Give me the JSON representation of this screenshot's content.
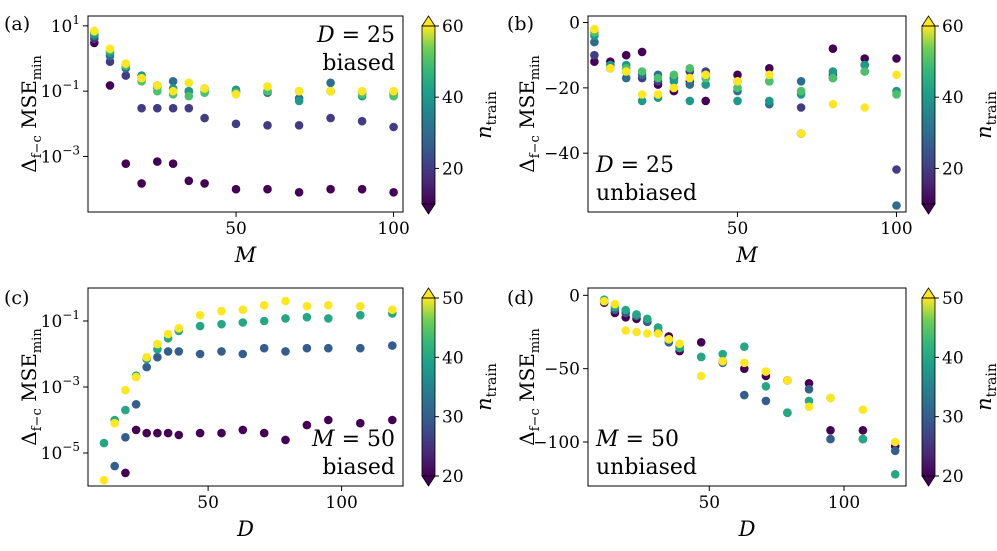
{
  "chart_data": [
    {
      "id": "a",
      "panel_label": "(a)",
      "type": "scatter",
      "xscale": "linear",
      "yscale": "log",
      "xlim": [
        3,
        103
      ],
      "ylim": [
        2e-05,
        20
      ],
      "xticks": [
        50,
        100
      ],
      "yticks": [
        {
          "value": 10,
          "label": "10",
          "exp": "1"
        },
        {
          "value": 0.1,
          "label": "10",
          "exp": "−1"
        },
        {
          "value": 0.001,
          "label": "10",
          "exp": "−3"
        }
      ],
      "xlabel": "M",
      "ylabel_main": "Δ",
      "ylabel_sub": "f−c",
      "ylabel_rest": " MSE",
      "ylabel_sub2": "min",
      "annotation": {
        "line1": "D = 25",
        "line2": "biased"
      },
      "annotation_position": "top-right",
      "colorbar": {
        "min": 10,
        "max": 60,
        "ticks": [
          20,
          40,
          60
        ],
        "label_main": "n",
        "label_sub": "train"
      },
      "x": [
        5,
        10,
        15,
        20,
        25,
        30,
        35,
        40,
        50,
        60,
        70,
        80,
        90,
        100
      ],
      "series": [
        {
          "name": "ntrain=10",
          "c": 10,
          "values": [
            3.0,
            0.15,
            0.0006,
            0.00015,
            0.0007,
            0.0006,
            0.00018,
            0.00015,
            0.0001,
            0.0001,
            8e-05,
            0.0001,
            0.0001,
            8e-05
          ]
        },
        {
          "name": "ntrain=20",
          "c": 20,
          "values": [
            4.0,
            0.8,
            0.3,
            0.03,
            0.03,
            0.03,
            0.03,
            0.015,
            0.01,
            0.009,
            0.009,
            0.015,
            0.012,
            0.008
          ]
        },
        {
          "name": "ntrain=30",
          "c": 30,
          "values": [
            5.0,
            1.2,
            0.5,
            0.25,
            0.15,
            0.2,
            0.1,
            0.12,
            0.1,
            0.09,
            0.06,
            0.18,
            0.09,
            0.09
          ]
        },
        {
          "name": "ntrain=40",
          "c": 40,
          "values": [
            5.5,
            1.5,
            0.6,
            0.3,
            0.13,
            0.12,
            0.1,
            0.1,
            0.11,
            0.1,
            0.05,
            0.1,
            0.07,
            0.08
          ]
        },
        {
          "name": "ntrain=50",
          "c": 50,
          "values": [
            6.5,
            1.8,
            0.6,
            0.2,
            0.1,
            0.08,
            0.07,
            0.09,
            0.09,
            0.1,
            0.1,
            0.1,
            0.08,
            0.07
          ]
        },
        {
          "name": "ntrain=60",
          "c": 60,
          "values": [
            7.0,
            2.0,
            0.7,
            0.25,
            0.15,
            0.1,
            0.18,
            0.12,
            0.08,
            0.14,
            0.1,
            0.1,
            0.1,
            0.1
          ]
        }
      ]
    },
    {
      "id": "b",
      "panel_label": "(b)",
      "type": "scatter",
      "xscale": "linear",
      "yscale": "linear",
      "xlim": [
        3,
        103
      ],
      "ylim": [
        -58,
        2
      ],
      "xticks": [
        50,
        100
      ],
      "yticks": [
        {
          "value": 0,
          "label": "0"
        },
        {
          "value": -20,
          "label": "−20"
        },
        {
          "value": -40,
          "label": "−40"
        }
      ],
      "xlabel": "M",
      "ylabel_main": "Δ",
      "ylabel_sub": "f−c",
      "ylabel_rest": " MSE",
      "ylabel_sub2": "min",
      "annotation": {
        "line1": "D = 25",
        "line2": "unbiased"
      },
      "annotation_position": "bottom-left",
      "colorbar": {
        "min": 10,
        "max": 60,
        "ticks": [
          20,
          40,
          60
        ],
        "label_main": "n",
        "label_sub": "train"
      },
      "x": [
        5,
        10,
        15,
        20,
        25,
        30,
        35,
        40,
        50,
        60,
        70,
        80,
        90,
        100
      ],
      "series": [
        {
          "name": "ntrain=10",
          "c": 10,
          "values": [
            -12,
            -12,
            -10,
            -9,
            -19,
            -21,
            -18,
            -24,
            -16,
            -14,
            -34,
            -8,
            -11,
            -11
          ]
        },
        {
          "name": "ntrain=20",
          "c": 20,
          "values": [
            -10,
            -14,
            -15,
            -17,
            -18,
            -17,
            -15,
            -15,
            -18,
            -18,
            -26,
            -16,
            -13,
            -45
          ]
        },
        {
          "name": "ntrain=30",
          "c": 30,
          "values": [
            -6,
            -13,
            -17,
            -16,
            -16,
            -17,
            -19,
            -16,
            -21,
            -25,
            -18,
            -17,
            -15,
            -56
          ]
        },
        {
          "name": "ntrain=40",
          "c": 40,
          "values": [
            -4,
            -13,
            -13,
            -24,
            -23,
            -18,
            -24,
            -19,
            -24,
            -24,
            -22,
            -15,
            -13,
            -21
          ]
        },
        {
          "name": "ntrain=50",
          "c": 50,
          "values": [
            -3,
            -14,
            -14,
            -15,
            -17,
            -16,
            -14,
            -17,
            -20,
            -18,
            -21,
            -17,
            -15,
            -22
          ]
        },
        {
          "name": "ntrain=60",
          "c": 60,
          "values": [
            -2,
            -14,
            -15,
            -22,
            -22,
            -20,
            -17,
            -16,
            -18,
            -16,
            -34,
            -25,
            -26,
            -16
          ]
        }
      ]
    },
    {
      "id": "c",
      "panel_label": "(c)",
      "type": "scatter",
      "xscale": "linear",
      "yscale": "log",
      "xlim": [
        5,
        123
      ],
      "ylim": [
        1e-06,
        1.0
      ],
      "xticks": [
        50,
        100
      ],
      "yticks": [
        {
          "value": 0.1,
          "label": "10",
          "exp": "−1"
        },
        {
          "value": 0.001,
          "label": "10",
          "exp": "−3"
        },
        {
          "value": 1e-05,
          "label": "10",
          "exp": "−5"
        }
      ],
      "xlabel": "D",
      "ylabel_main": "Δ",
      "ylabel_sub": "f−c",
      "ylabel_rest": " MSE",
      "ylabel_sub2": "min",
      "annotation": {
        "line1": "M = 50",
        "line2": "biased"
      },
      "annotation_position": "bottom-right",
      "colorbar": {
        "min": 20,
        "max": 50,
        "ticks": [
          20,
          30,
          40,
          50
        ],
        "label_main": "n",
        "label_sub": "train"
      },
      "x": [
        11,
        15,
        19,
        23,
        27,
        31,
        35,
        39,
        47,
        55,
        63,
        71,
        79,
        87,
        95,
        107,
        119
      ],
      "series": [
        {
          "name": "ntrain=20",
          "c": 20,
          "values": [
            null,
            null,
            2.5e-06,
            5e-05,
            4e-05,
            4e-05,
            4e-05,
            3.5e-05,
            4e-05,
            4e-05,
            5e-05,
            4e-05,
            2.5e-05,
            7e-05,
            0.0001,
            8e-05,
            0.0001
          ]
        },
        {
          "name": "ntrain=30",
          "c": 30,
          "values": [
            null,
            4e-06,
            3e-05,
            0.0003,
            0.004,
            0.008,
            0.012,
            0.012,
            0.01,
            0.012,
            0.01,
            0.015,
            0.012,
            0.015,
            0.015,
            0.015,
            0.018
          ]
        },
        {
          "name": "ntrain=40",
          "c": 40,
          "values": [
            2e-05,
            0.0001,
            0.0002,
            0.0022,
            0.007,
            0.014,
            0.03,
            0.05,
            0.07,
            0.08,
            0.09,
            0.1,
            0.12,
            0.13,
            0.12,
            0.15,
            0.17
          ]
        },
        {
          "name": "ntrain=50",
          "c": 50,
          "values": [
            1.5e-06,
            8e-05,
            0.0008,
            0.002,
            0.008,
            0.02,
            0.04,
            0.06,
            0.15,
            0.2,
            0.22,
            0.3,
            0.4,
            0.28,
            0.3,
            0.28,
            0.22
          ]
        }
      ]
    },
    {
      "id": "d",
      "panel_label": "(d)",
      "type": "scatter",
      "xscale": "linear",
      "yscale": "linear",
      "xlim": [
        5,
        123
      ],
      "ylim": [
        -130,
        5
      ],
      "xticks": [
        50,
        100
      ],
      "yticks": [
        {
          "value": 0,
          "label": "0"
        },
        {
          "value": -50,
          "label": "−50"
        },
        {
          "value": -100,
          "label": "−100"
        }
      ],
      "xlabel": "D",
      "ylabel_main": "Δ",
      "ylabel_sub": "f−c",
      "ylabel_rest": " MSE",
      "ylabel_sub2": "min",
      "annotation": {
        "line1": "M = 50",
        "line2": "unbiased"
      },
      "annotation_position": "bottom-left",
      "colorbar": {
        "min": 20,
        "max": 50,
        "ticks": [
          20,
          30,
          40,
          50
        ],
        "label_main": "n",
        "label_sub": "train"
      },
      "x": [
        11,
        15,
        19,
        23,
        27,
        31,
        35,
        39,
        47,
        55,
        63,
        71,
        79,
        87,
        95,
        107,
        119
      ],
      "series": [
        {
          "name": "ntrain=20",
          "c": 20,
          "values": [
            -5,
            -12,
            -15,
            -16,
            -18,
            -25,
            -28,
            -38,
            -32,
            -45,
            -50,
            -55,
            -58,
            -60,
            -92,
            -92,
            -103
          ]
        },
        {
          "name": "ntrain=30",
          "c": 30,
          "values": [
            -4,
            -10,
            -12,
            -14,
            -18,
            -22,
            -32,
            -35,
            -42,
            -46,
            -68,
            -72,
            -80,
            -64,
            -98,
            -98,
            -106
          ]
        },
        {
          "name": "ntrain=40",
          "c": 40,
          "values": [
            -3,
            -8,
            -10,
            -13,
            -16,
            -22,
            -30,
            -36,
            -42,
            -40,
            -35,
            -62,
            -80,
            -72,
            -70,
            -98,
            -122
          ]
        },
        {
          "name": "ntrain=50",
          "c": 50,
          "values": [
            -4,
            -6,
            -24,
            -25,
            -26,
            -26,
            -30,
            -33,
            -55,
            -45,
            -46,
            -52,
            -58,
            -76,
            -70,
            -78,
            -100
          ]
        }
      ]
    }
  ]
}
